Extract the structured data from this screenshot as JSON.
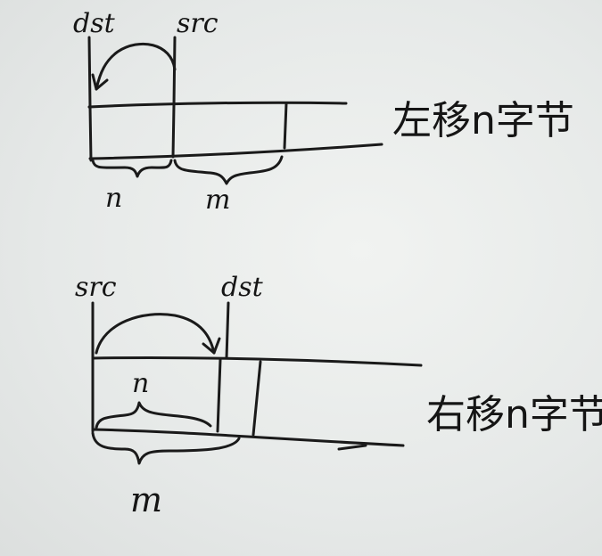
{
  "diagram_top": {
    "dst_label": "dst",
    "src_label": "src",
    "n_label": "n",
    "m_label": "m",
    "caption": "左移n字节"
  },
  "diagram_bottom": {
    "src_label": "src",
    "dst_label": "dst",
    "n_label": "n",
    "m_label": "m",
    "caption": "右移n字节"
  }
}
